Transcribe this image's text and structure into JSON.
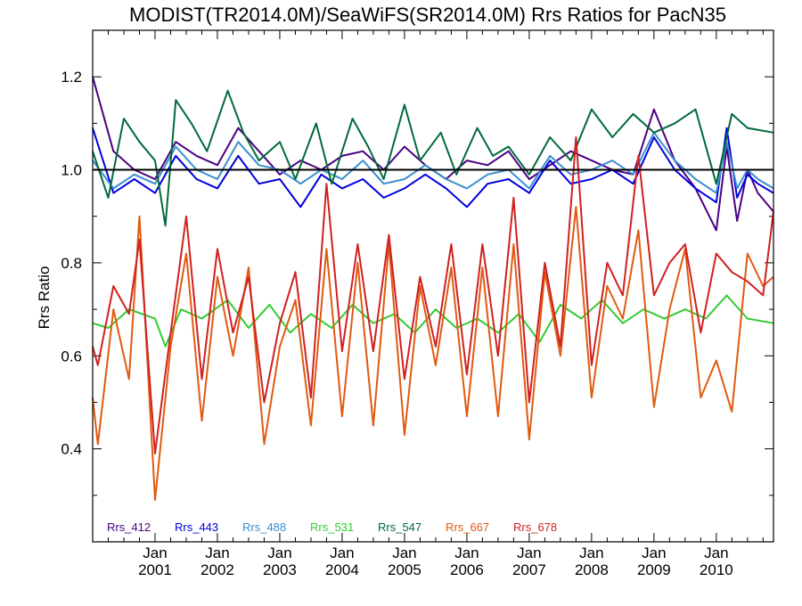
{
  "chart_data": {
    "type": "line",
    "title": "MODIST(TR2014.0M)/SeaWiFS(SR2014.0M)  Rrs Ratios for PacN35",
    "ylabel": "Rrs Ratio",
    "xlabel": "",
    "ylim": [
      0.2,
      1.3
    ],
    "xlim": [
      "2000-01",
      "2010-12"
    ],
    "yticks": [
      0.4,
      0.6,
      0.8,
      1.0,
      1.2
    ],
    "ytick_labels": [
      "0.4",
      "0.6",
      "0.8",
      "1.0",
      "1.2"
    ],
    "xticks": [
      {
        "month": "Jan",
        "year": "2001",
        "value": "2001-01"
      },
      {
        "month": "Jan",
        "year": "2002",
        "value": "2002-01"
      },
      {
        "month": "Jan",
        "year": "2003",
        "value": "2003-01"
      },
      {
        "month": "Jan",
        "year": "2004",
        "value": "2004-01"
      },
      {
        "month": "Jan",
        "year": "2005",
        "value": "2005-01"
      },
      {
        "month": "Jan",
        "year": "2006",
        "value": "2006-01"
      },
      {
        "month": "Jan",
        "year": "2007",
        "value": "2007-01"
      },
      {
        "month": "Jan",
        "year": "2008",
        "value": "2008-01"
      },
      {
        "month": "Jan",
        "year": "2009",
        "value": "2009-01"
      },
      {
        "month": "Jan",
        "year": "2010",
        "value": "2010-01"
      }
    ],
    "reference_line": 1.0,
    "legend_placement": "bottom-left",
    "series": [
      {
        "name": "Rrs_412",
        "color": "#4b0082",
        "points": [
          [
            "2000-01",
            1.2
          ],
          [
            "2000-05",
            1.04
          ],
          [
            "2000-09",
            1.0
          ],
          [
            "2001-01",
            0.98
          ],
          [
            "2001-05",
            1.06
          ],
          [
            "2001-09",
            1.03
          ],
          [
            "2002-01",
            1.01
          ],
          [
            "2002-05",
            1.09
          ],
          [
            "2002-09",
            1.04
          ],
          [
            "2003-01",
            0.99
          ],
          [
            "2003-05",
            1.02
          ],
          [
            "2003-09",
            1.0
          ],
          [
            "2004-01",
            1.03
          ],
          [
            "2004-05",
            1.04
          ],
          [
            "2004-09",
            1.0
          ],
          [
            "2005-01",
            1.05
          ],
          [
            "2005-05",
            1.01
          ],
          [
            "2005-09",
            0.98
          ],
          [
            "2006-01",
            1.02
          ],
          [
            "2006-05",
            1.01
          ],
          [
            "2006-09",
            1.04
          ],
          [
            "2007-01",
            0.98
          ],
          [
            "2007-05",
            1.01
          ],
          [
            "2007-09",
            1.04
          ],
          [
            "2008-01",
            1.02
          ],
          [
            "2008-05",
            1.0
          ],
          [
            "2008-09",
            0.99
          ],
          [
            "2009-01",
            1.13
          ],
          [
            "2009-05",
            1.02
          ],
          [
            "2009-09",
            0.96
          ],
          [
            "2010-01",
            0.87
          ],
          [
            "2010-03",
            1.05
          ],
          [
            "2010-05",
            0.89
          ],
          [
            "2010-07",
            1.0
          ],
          [
            "2010-09",
            0.95
          ],
          [
            "2010-12",
            0.91
          ]
        ]
      },
      {
        "name": "Rrs_443",
        "color": "#0000e0",
        "points": [
          [
            "2000-01",
            1.09
          ],
          [
            "2000-05",
            0.95
          ],
          [
            "2000-09",
            0.98
          ],
          [
            "2001-01",
            0.95
          ],
          [
            "2001-05",
            1.03
          ],
          [
            "2001-09",
            0.98
          ],
          [
            "2002-01",
            0.96
          ],
          [
            "2002-05",
            1.03
          ],
          [
            "2002-09",
            0.97
          ],
          [
            "2003-01",
            0.98
          ],
          [
            "2003-05",
            0.92
          ],
          [
            "2003-09",
            0.99
          ],
          [
            "2004-01",
            0.96
          ],
          [
            "2004-05",
            0.98
          ],
          [
            "2004-09",
            0.94
          ],
          [
            "2005-01",
            0.96
          ],
          [
            "2005-05",
            0.99
          ],
          [
            "2005-09",
            0.96
          ],
          [
            "2006-01",
            0.92
          ],
          [
            "2006-05",
            0.97
          ],
          [
            "2006-09",
            0.98
          ],
          [
            "2007-01",
            0.95
          ],
          [
            "2007-05",
            1.02
          ],
          [
            "2007-09",
            0.97
          ],
          [
            "2008-01",
            0.98
          ],
          [
            "2008-05",
            1.0
          ],
          [
            "2008-09",
            0.97
          ],
          [
            "2009-01",
            1.07
          ],
          [
            "2009-05",
            1.0
          ],
          [
            "2009-09",
            0.96
          ],
          [
            "2010-01",
            0.93
          ],
          [
            "2010-03",
            1.09
          ],
          [
            "2010-05",
            0.94
          ],
          [
            "2010-07",
            0.99
          ],
          [
            "2010-09",
            0.97
          ],
          [
            "2010-12",
            0.95
          ]
        ]
      },
      {
        "name": "Rrs_488",
        "color": "#3a8fd0",
        "points": [
          [
            "2000-01",
            1.02
          ],
          [
            "2000-05",
            0.96
          ],
          [
            "2000-09",
            0.99
          ],
          [
            "2001-01",
            0.97
          ],
          [
            "2001-05",
            1.05
          ],
          [
            "2001-09",
            1.0
          ],
          [
            "2002-01",
            0.98
          ],
          [
            "2002-05",
            1.06
          ],
          [
            "2002-09",
            1.01
          ],
          [
            "2003-01",
            1.0
          ],
          [
            "2003-05",
            0.97
          ],
          [
            "2003-09",
            1.0
          ],
          [
            "2004-01",
            0.98
          ],
          [
            "2004-05",
            1.02
          ],
          [
            "2004-09",
            0.97
          ],
          [
            "2005-01",
            0.98
          ],
          [
            "2005-05",
            1.01
          ],
          [
            "2005-09",
            0.98
          ],
          [
            "2006-01",
            0.96
          ],
          [
            "2006-05",
            0.99
          ],
          [
            "2006-09",
            1.0
          ],
          [
            "2007-01",
            0.96
          ],
          [
            "2007-05",
            1.03
          ],
          [
            "2007-09",
            0.99
          ],
          [
            "2008-01",
            1.0
          ],
          [
            "2008-05",
            1.02
          ],
          [
            "2008-09",
            0.99
          ],
          [
            "2009-01",
            1.08
          ],
          [
            "2009-05",
            1.02
          ],
          [
            "2009-09",
            0.98
          ],
          [
            "2010-01",
            0.95
          ],
          [
            "2010-03",
            1.06
          ],
          [
            "2010-05",
            0.96
          ],
          [
            "2010-07",
            1.0
          ],
          [
            "2010-09",
            0.98
          ],
          [
            "2010-12",
            0.96
          ]
        ]
      },
      {
        "name": "Rrs_531",
        "color": "#33cc33",
        "points": [
          [
            "2000-01",
            0.67
          ],
          [
            "2000-04",
            0.66
          ],
          [
            "2000-08",
            0.7
          ],
          [
            "2001-01",
            0.68
          ],
          [
            "2001-03",
            0.62
          ],
          [
            "2001-06",
            0.7
          ],
          [
            "2001-10",
            0.68
          ],
          [
            "2002-03",
            0.72
          ],
          [
            "2002-07",
            0.66
          ],
          [
            "2002-11",
            0.71
          ],
          [
            "2003-03",
            0.65
          ],
          [
            "2003-07",
            0.69
          ],
          [
            "2003-11",
            0.66
          ],
          [
            "2004-03",
            0.71
          ],
          [
            "2004-07",
            0.67
          ],
          [
            "2004-11",
            0.69
          ],
          [
            "2005-03",
            0.65
          ],
          [
            "2005-07",
            0.7
          ],
          [
            "2005-11",
            0.66
          ],
          [
            "2006-03",
            0.68
          ],
          [
            "2006-07",
            0.65
          ],
          [
            "2006-11",
            0.69
          ],
          [
            "2007-03",
            0.63
          ],
          [
            "2007-07",
            0.71
          ],
          [
            "2007-11",
            0.68
          ],
          [
            "2008-03",
            0.72
          ],
          [
            "2008-07",
            0.67
          ],
          [
            "2008-11",
            0.7
          ],
          [
            "2009-03",
            0.68
          ],
          [
            "2009-07",
            0.7
          ],
          [
            "2009-11",
            0.68
          ],
          [
            "2010-03",
            0.73
          ],
          [
            "2010-07",
            0.68
          ],
          [
            "2010-12",
            0.67
          ]
        ]
      },
      {
        "name": "Rrs_547",
        "color": "#006a3a",
        "points": [
          [
            "2000-01",
            1.04
          ],
          [
            "2000-04",
            0.94
          ],
          [
            "2000-07",
            1.11
          ],
          [
            "2000-10",
            1.06
          ],
          [
            "2001-01",
            1.02
          ],
          [
            "2001-03",
            0.88
          ],
          [
            "2001-05",
            1.15
          ],
          [
            "2001-08",
            1.1
          ],
          [
            "2001-11",
            1.04
          ],
          [
            "2002-03",
            1.17
          ],
          [
            "2002-06",
            1.08
          ],
          [
            "2002-09",
            1.02
          ],
          [
            "2003-01",
            1.06
          ],
          [
            "2003-04",
            0.98
          ],
          [
            "2003-08",
            1.1
          ],
          [
            "2003-11",
            0.97
          ],
          [
            "2004-03",
            1.11
          ],
          [
            "2004-06",
            1.05
          ],
          [
            "2004-09",
            0.98
          ],
          [
            "2005-01",
            1.14
          ],
          [
            "2005-04",
            1.02
          ],
          [
            "2005-08",
            1.08
          ],
          [
            "2005-11",
            0.99
          ],
          [
            "2006-03",
            1.09
          ],
          [
            "2006-06",
            1.03
          ],
          [
            "2006-09",
            1.05
          ],
          [
            "2007-01",
            0.99
          ],
          [
            "2007-05",
            1.07
          ],
          [
            "2007-09",
            1.02
          ],
          [
            "2008-01",
            1.13
          ],
          [
            "2008-05",
            1.07
          ],
          [
            "2008-09",
            1.12
          ],
          [
            "2009-01",
            1.08
          ],
          [
            "2009-05",
            1.1
          ],
          [
            "2009-09",
            1.13
          ],
          [
            "2010-01",
            0.97
          ],
          [
            "2010-04",
            1.12
          ],
          [
            "2010-07",
            1.09
          ],
          [
            "2010-12",
            1.08
          ]
        ]
      },
      {
        "name": "Rrs_667",
        "color": "#e05a10",
        "points": [
          [
            "2000-01",
            0.51
          ],
          [
            "2000-02",
            0.41
          ],
          [
            "2000-05",
            0.7
          ],
          [
            "2000-08",
            0.55
          ],
          [
            "2000-10",
            0.9
          ],
          [
            "2001-01",
            0.29
          ],
          [
            "2001-04",
            0.62
          ],
          [
            "2001-07",
            0.82
          ],
          [
            "2001-10",
            0.46
          ],
          [
            "2002-01",
            0.77
          ],
          [
            "2002-04",
            0.6
          ],
          [
            "2002-07",
            0.79
          ],
          [
            "2002-10",
            0.41
          ],
          [
            "2003-01",
            0.62
          ],
          [
            "2003-04",
            0.72
          ],
          [
            "2003-07",
            0.45
          ],
          [
            "2003-10",
            0.83
          ],
          [
            "2004-01",
            0.47
          ],
          [
            "2004-04",
            0.8
          ],
          [
            "2004-07",
            0.45
          ],
          [
            "2004-10",
            0.84
          ],
          [
            "2005-01",
            0.43
          ],
          [
            "2005-04",
            0.75
          ],
          [
            "2005-07",
            0.58
          ],
          [
            "2005-10",
            0.79
          ],
          [
            "2006-01",
            0.47
          ],
          [
            "2006-04",
            0.79
          ],
          [
            "2006-07",
            0.47
          ],
          [
            "2006-10",
            0.84
          ],
          [
            "2007-01",
            0.42
          ],
          [
            "2007-04",
            0.78
          ],
          [
            "2007-07",
            0.6
          ],
          [
            "2007-10",
            0.92
          ],
          [
            "2008-01",
            0.51
          ],
          [
            "2008-04",
            0.75
          ],
          [
            "2008-07",
            0.68
          ],
          [
            "2008-10",
            0.87
          ],
          [
            "2009-01",
            0.49
          ],
          [
            "2009-04",
            0.7
          ],
          [
            "2009-07",
            0.83
          ],
          [
            "2009-10",
            0.51
          ],
          [
            "2010-01",
            0.59
          ],
          [
            "2010-04",
            0.48
          ],
          [
            "2010-07",
            0.82
          ],
          [
            "2010-10",
            0.75
          ],
          [
            "2010-12",
            0.77
          ]
        ]
      },
      {
        "name": "Rrs_678",
        "color": "#d02020",
        "points": [
          [
            "2000-01",
            0.62
          ],
          [
            "2000-02",
            0.58
          ],
          [
            "2000-05",
            0.75
          ],
          [
            "2000-08",
            0.69
          ],
          [
            "2000-10",
            0.85
          ],
          [
            "2001-01",
            0.39
          ],
          [
            "2001-04",
            0.65
          ],
          [
            "2001-07",
            0.9
          ],
          [
            "2001-10",
            0.55
          ],
          [
            "2002-01",
            0.83
          ],
          [
            "2002-04",
            0.65
          ],
          [
            "2002-07",
            0.77
          ],
          [
            "2002-10",
            0.5
          ],
          [
            "2003-01",
            0.67
          ],
          [
            "2003-04",
            0.78
          ],
          [
            "2003-07",
            0.51
          ],
          [
            "2003-10",
            0.97
          ],
          [
            "2004-01",
            0.61
          ],
          [
            "2004-04",
            0.84
          ],
          [
            "2004-07",
            0.61
          ],
          [
            "2004-10",
            0.86
          ],
          [
            "2005-01",
            0.55
          ],
          [
            "2005-04",
            0.77
          ],
          [
            "2005-07",
            0.62
          ],
          [
            "2005-10",
            0.84
          ],
          [
            "2006-01",
            0.56
          ],
          [
            "2006-04",
            0.84
          ],
          [
            "2006-07",
            0.6
          ],
          [
            "2006-10",
            0.94
          ],
          [
            "2007-01",
            0.5
          ],
          [
            "2007-04",
            0.8
          ],
          [
            "2007-07",
            0.62
          ],
          [
            "2007-10",
            1.07
          ],
          [
            "2008-01",
            0.58
          ],
          [
            "2008-04",
            0.8
          ],
          [
            "2008-07",
            0.73
          ],
          [
            "2008-10",
            1.03
          ],
          [
            "2009-01",
            0.73
          ],
          [
            "2009-04",
            0.8
          ],
          [
            "2009-07",
            0.84
          ],
          [
            "2009-10",
            0.65
          ],
          [
            "2010-01",
            0.82
          ],
          [
            "2010-04",
            0.78
          ],
          [
            "2010-07",
            0.76
          ],
          [
            "2010-10",
            0.73
          ],
          [
            "2010-12",
            0.91
          ]
        ]
      }
    ]
  }
}
